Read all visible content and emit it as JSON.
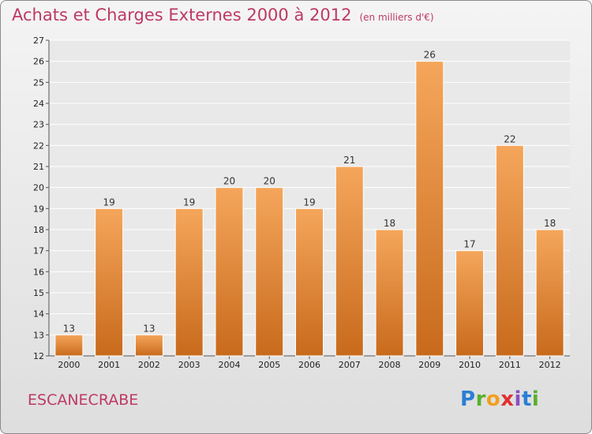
{
  "header": {
    "title": "Achats et Charges Externes 2000 à 2012",
    "unit": "(en milliers d'€)"
  },
  "place": "ESCANECRABE",
  "logo": {
    "letters": [
      "P",
      "r",
      "o",
      "x",
      "i",
      "t",
      "i"
    ],
    "colors": [
      "#2a7fd4",
      "#5ab02a",
      "#f0a020",
      "#e03030",
      "#8a4fc0",
      "#2a7fd4",
      "#5ab02a"
    ]
  },
  "chart_data": {
    "type": "bar",
    "title": "Achats et Charges Externes 2000 à 2012",
    "subtitle": "(en milliers d'€)",
    "categories": [
      "2000",
      "2001",
      "2002",
      "2003",
      "2004",
      "2005",
      "2006",
      "2007",
      "2008",
      "2009",
      "2010",
      "2011",
      "2012"
    ],
    "values": [
      13,
      19,
      13,
      19,
      20,
      20,
      19,
      21,
      18,
      26,
      17,
      22,
      18
    ],
    "ylim": [
      12,
      27
    ],
    "yticks": [
      12,
      13,
      14,
      15,
      16,
      17,
      18,
      19,
      20,
      21,
      22,
      23,
      24,
      25,
      26,
      27
    ],
    "grid": true,
    "bar_colors": [
      "#f5a65b",
      "#c86a1c"
    ]
  }
}
